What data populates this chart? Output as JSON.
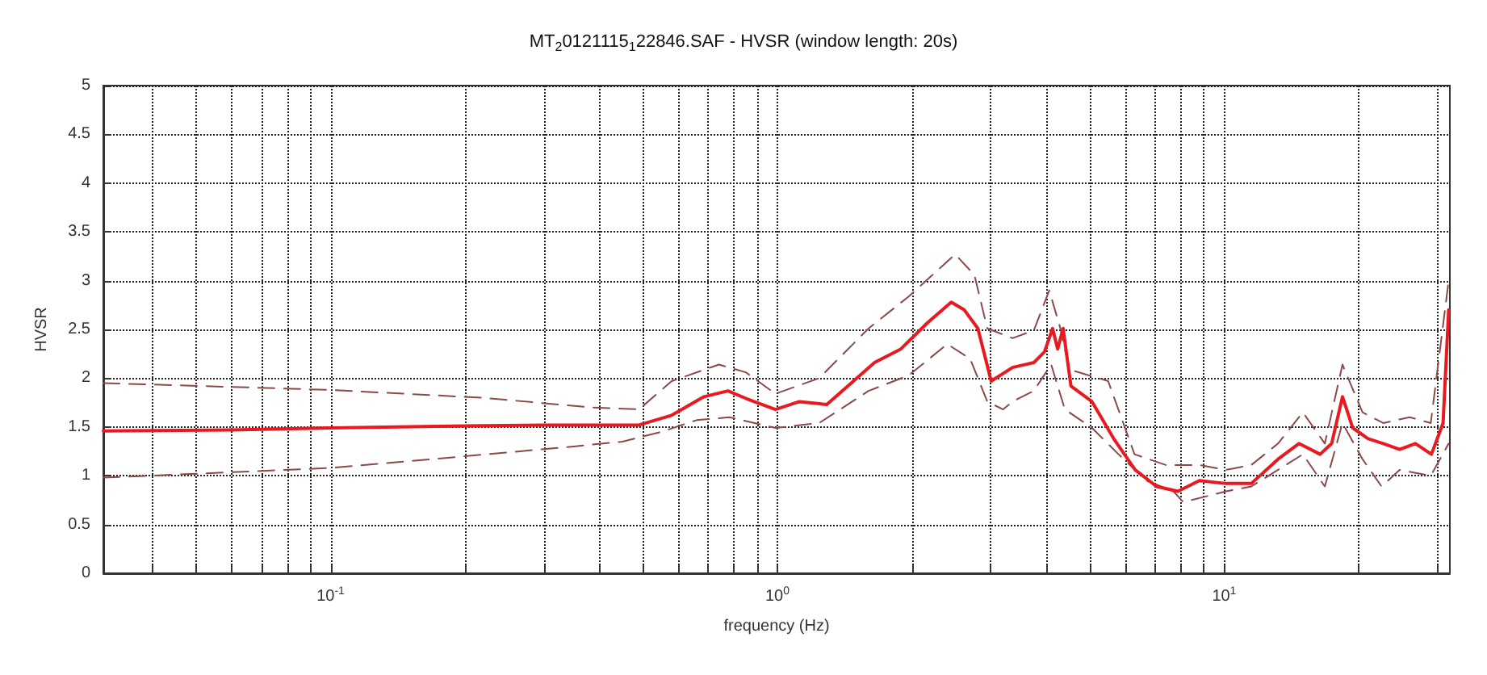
{
  "chart_data": {
    "type": "line",
    "title": "MT$_{2}$0121115$_{1}$22846.SAF - HVSR (window length: 20s)",
    "xlabel": "frequency (Hz)",
    "ylabel": "HVSR",
    "log": "x",
    "xlim": [
      0.031,
      32
    ],
    "ylim": [
      0,
      5
    ],
    "xticks": [
      {
        "value": 0.04,
        "label": null
      },
      {
        "value": 0.05,
        "label": null
      },
      {
        "value": 0.06,
        "label": null
      },
      {
        "value": 0.07,
        "label": null
      },
      {
        "value": 0.08,
        "label": null
      },
      {
        "value": 0.09,
        "label": null
      },
      {
        "value": 0.1,
        "label": "10$^{-1}$"
      },
      {
        "value": 0.2,
        "label": null
      },
      {
        "value": 0.3,
        "label": null
      },
      {
        "value": 0.4,
        "label": null
      },
      {
        "value": 0.5,
        "label": null
      },
      {
        "value": 0.6,
        "label": null
      },
      {
        "value": 0.7,
        "label": null
      },
      {
        "value": 0.8,
        "label": null
      },
      {
        "value": 0.9,
        "label": null
      },
      {
        "value": 1,
        "label": "10$^{0}$"
      },
      {
        "value": 2,
        "label": null
      },
      {
        "value": 3,
        "label": null
      },
      {
        "value": 4,
        "label": null
      },
      {
        "value": 5,
        "label": null
      },
      {
        "value": 6,
        "label": null
      },
      {
        "value": 7,
        "label": null
      },
      {
        "value": 8,
        "label": null
      },
      {
        "value": 9,
        "label": null
      },
      {
        "value": 10,
        "label": "10$^{1}$"
      },
      {
        "value": 20,
        "label": null
      },
      {
        "value": 30,
        "label": null
      }
    ],
    "yticks": [
      0,
      0.5,
      1,
      1.5,
      2,
      2.5,
      3,
      3.5,
      4,
      4.5,
      5
    ],
    "grid": true,
    "marker": "none",
    "series": [
      {
        "color": "#8a4a4a",
        "line_style": "dashed",
        "x": [
          0.031,
          0.1,
          0.217,
          0.386,
          0.49,
          0.58,
          0.74,
          0.85,
          0.99,
          1.24,
          1.6,
          1.97,
          2.5,
          2.76,
          2.95,
          3.36,
          3.75,
          4.06,
          4.3,
          4.5,
          5.5,
          6.3,
          7.4,
          8.8,
          10.1,
          11.5,
          13.2,
          15,
          16.8,
          18.4,
          20.4,
          22.7,
          26,
          29,
          31.8
        ],
        "values": [
          1.95,
          1.88,
          1.8,
          1.7,
          1.68,
          1.97,
          2.14,
          2.06,
          1.84,
          2.0,
          2.51,
          2.84,
          3.27,
          3.06,
          2.51,
          2.41,
          2.49,
          2.9,
          2.51,
          2.09,
          1.97,
          1.22,
          1.11,
          1.11,
          1.06,
          1.11,
          1.33,
          1.65,
          1.33,
          2.14,
          1.65,
          1.54,
          1.6,
          1.54,
          3.0
        ]
      },
      {
        "color": "#8a4a4a",
        "line_style": "dashed",
        "x": [
          0.031,
          0.05,
          0.1,
          0.2,
          0.35,
          0.45,
          0.55,
          0.66,
          0.78,
          0.99,
          1.24,
          1.6,
          1.97,
          2.4,
          2.7,
          2.95,
          3.2,
          3.36,
          3.75,
          4.1,
          4.4,
          5.06,
          5.8,
          6.7,
          7.7,
          8.1,
          10.1,
          11.5,
          13.2,
          15,
          16.8,
          18.4,
          20.4,
          22.5,
          24.7,
          29,
          31.8
        ],
        "values": [
          0.98,
          1.02,
          1.08,
          1.2,
          1.3,
          1.35,
          1.45,
          1.57,
          1.6,
          1.49,
          1.54,
          1.87,
          2.03,
          2.35,
          2.2,
          1.76,
          1.68,
          1.76,
          1.87,
          2.14,
          1.68,
          1.49,
          1.22,
          0.95,
          0.84,
          0.73,
          0.84,
          0.89,
          1.06,
          1.22,
          0.89,
          1.54,
          1.17,
          0.89,
          1.06,
          1.0,
          1.33
        ]
      },
      {
        "color": "#e8191f",
        "line_style": "solid",
        "x": [
          0.031,
          0.06,
          0.1,
          0.2,
          0.3,
          0.49,
          0.58,
          0.685,
          0.775,
          0.853,
          0.99,
          1.12,
          1.29,
          1.48,
          1.65,
          1.89,
          2.17,
          2.45,
          2.62,
          2.81,
          3.01,
          3.36,
          3.75,
          3.96,
          4.13,
          4.24,
          4.36,
          4.54,
          5.06,
          5.66,
          6.32,
          7.06,
          7.88,
          8.8,
          10.1,
          11.5,
          13.2,
          14.7,
          16.4,
          17.4,
          18.4,
          19.4,
          21,
          22.7,
          24.7,
          26.8,
          29.1,
          30.9,
          31.8
        ],
        "values": [
          1.46,
          1.47,
          1.49,
          1.51,
          1.52,
          1.52,
          1.62,
          1.81,
          1.87,
          1.79,
          1.68,
          1.76,
          1.73,
          1.97,
          2.16,
          2.3,
          2.57,
          2.78,
          2.7,
          2.51,
          1.97,
          2.11,
          2.16,
          2.27,
          2.51,
          2.3,
          2.51,
          1.92,
          1.76,
          1.38,
          1.06,
          0.89,
          0.84,
          0.95,
          0.92,
          0.92,
          1.17,
          1.33,
          1.22,
          1.33,
          1.81,
          1.49,
          1.38,
          1.33,
          1.27,
          1.33,
          1.22,
          1.54,
          2.7
        ]
      }
    ]
  }
}
